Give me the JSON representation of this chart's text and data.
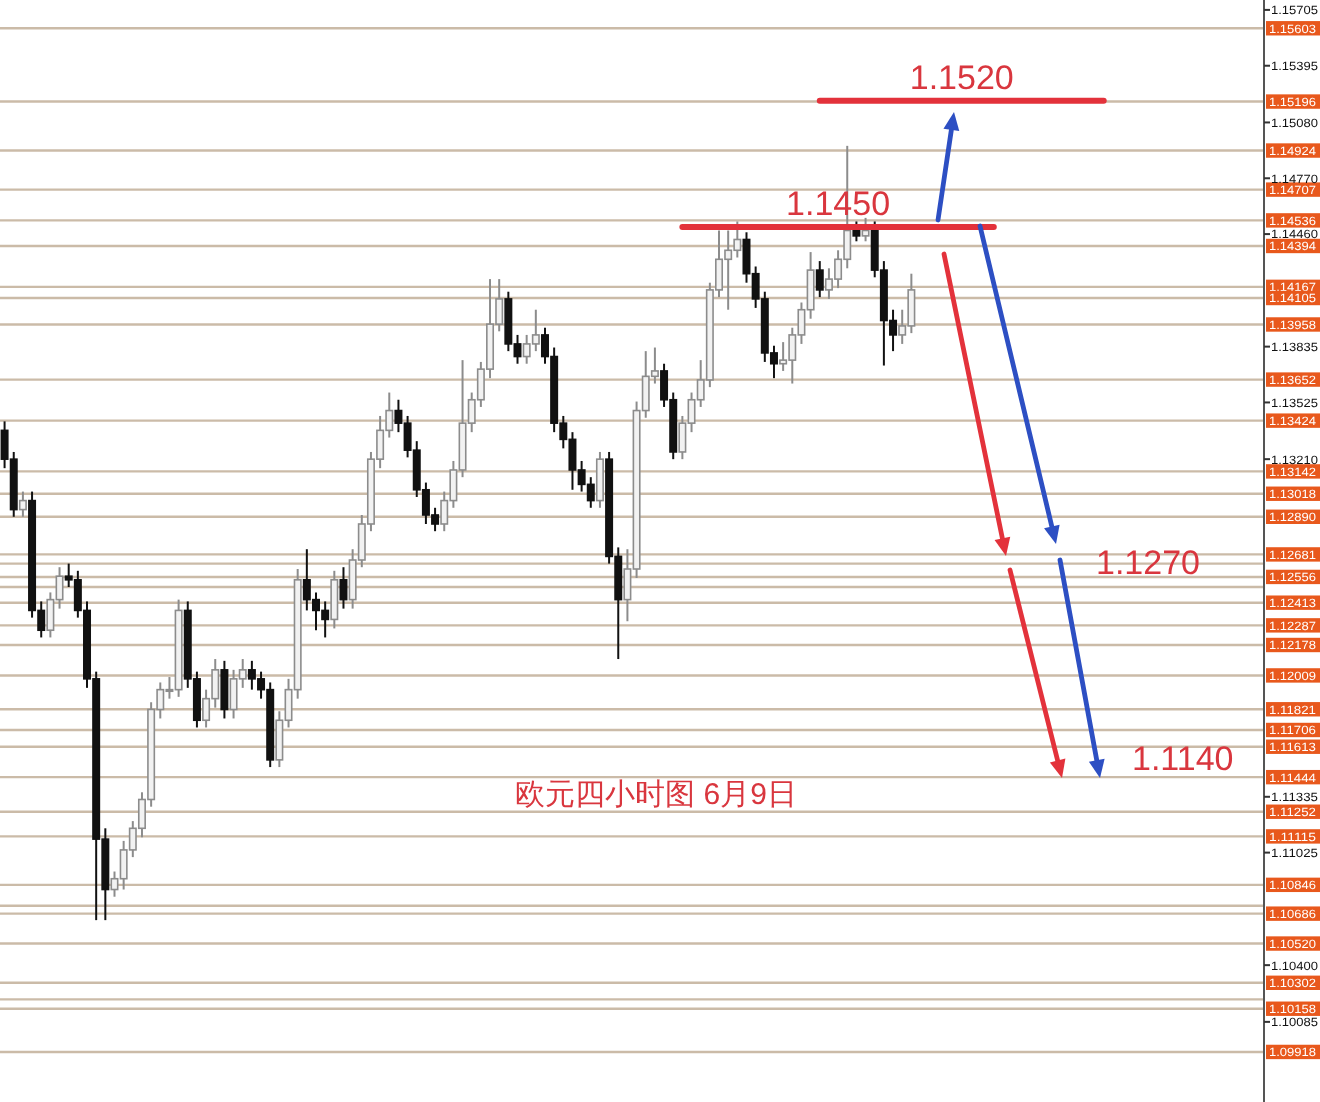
{
  "chart_data": {
    "type": "candlestick",
    "title": "欧元四小时图  6月9日",
    "categories": [
      null,
      null,
      null,
      null,
      null,
      null,
      null,
      null,
      null,
      null,
      null,
      null,
      null,
      null,
      null,
      null,
      null,
      null,
      null,
      null,
      null,
      null,
      null,
      null,
      null,
      null,
      null,
      null,
      null,
      null,
      null,
      null,
      null,
      null,
      null,
      null,
      null,
      null,
      null,
      null,
      null,
      null,
      null,
      null,
      null,
      null,
      null,
      null,
      null,
      null,
      null,
      null,
      null,
      null,
      null,
      null,
      null,
      null,
      null,
      null,
      null,
      null,
      null,
      null,
      null,
      null,
      null,
      null,
      null,
      null,
      null,
      null,
      null,
      null,
      null,
      null,
      null,
      null,
      null,
      null,
      null,
      null,
      null,
      null,
      null,
      null,
      null,
      null,
      null,
      null,
      null,
      null,
      null,
      null,
      null,
      null,
      null,
      null,
      null,
      null,
      null,
      null,
      null,
      null,
      null,
      null,
      null,
      null,
      null,
      null,
      null,
      null,
      null,
      null,
      null,
      null,
      null,
      null,
      null,
      null,
      null,
      null,
      null,
      null,
      null,
      null,
      null,
      null,
      null,
      null,
      null,
      null,
      null,
      null,
      null,
      null,
      null,
      null
    ],
    "ohlc": [
      [
        1.1337,
        1.1342,
        1.1316,
        1.1321
      ],
      [
        1.1321,
        1.1325,
        1.1289,
        1.1293
      ],
      [
        1.1293,
        1.1303,
        1.1289,
        1.1298
      ],
      [
        1.1298,
        1.1303,
        1.1233,
        1.1237
      ],
      [
        1.1237,
        1.1242,
        1.1222,
        1.1226
      ],
      [
        1.1226,
        1.1247,
        1.1222,
        1.1243
      ],
      [
        1.1243,
        1.1261,
        1.1238,
        1.1256
      ],
      [
        1.1256,
        1.1263,
        1.125,
        1.1254
      ],
      [
        1.1254,
        1.1259,
        1.1233,
        1.1237
      ],
      [
        1.1237,
        1.1242,
        1.1194,
        1.1199
      ],
      [
        1.1199,
        1.1203,
        1.1065,
        1.111
      ],
      [
        1.111,
        1.1116,
        1.1065,
        1.1082
      ],
      [
        1.1082,
        1.1092,
        1.1078,
        1.1088
      ],
      [
        1.1088,
        1.1109,
        1.1082,
        1.1104
      ],
      [
        1.1104,
        1.112,
        1.11,
        1.1116
      ],
      [
        1.1116,
        1.1136,
        1.1111,
        1.1132
      ],
      [
        1.1132,
        1.1186,
        1.1128,
        1.1182
      ],
      [
        1.1182,
        1.1197,
        1.1177,
        1.1193
      ],
      [
        1.1193,
        1.12,
        1.1188,
        1.1193
      ],
      [
        1.1193,
        1.1243,
        1.1189,
        1.1237
      ],
      [
        1.1237,
        1.1242,
        1.1194,
        1.1199
      ],
      [
        1.1199,
        1.1203,
        1.1172,
        1.1176
      ],
      [
        1.1176,
        1.1193,
        1.1172,
        1.1188
      ],
      [
        1.1188,
        1.121,
        1.1183,
        1.1204
      ],
      [
        1.1204,
        1.1209,
        1.1177,
        1.1182
      ],
      [
        1.1182,
        1.1204,
        1.1177,
        1.1199
      ],
      [
        1.1199,
        1.121,
        1.1194,
        1.1204
      ],
      [
        1.1204,
        1.1209,
        1.1193,
        1.1199
      ],
      [
        1.1199,
        1.1203,
        1.1188,
        1.1193
      ],
      [
        1.1193,
        1.1197,
        1.115,
        1.1154
      ],
      [
        1.1154,
        1.1181,
        1.115,
        1.1176
      ],
      [
        1.1176,
        1.1199,
        1.1172,
        1.1193
      ],
      [
        1.1193,
        1.126,
        1.1188,
        1.1254
      ],
      [
        1.1254,
        1.1271,
        1.1237,
        1.1243
      ],
      [
        1.1243,
        1.1247,
        1.1226,
        1.1237
      ],
      [
        1.1237,
        1.1242,
        1.1222,
        1.1232
      ],
      [
        1.1232,
        1.1259,
        1.1227,
        1.1254
      ],
      [
        1.1254,
        1.1261,
        1.1238,
        1.1243
      ],
      [
        1.1243,
        1.1271,
        1.1238,
        1.1265
      ],
      [
        1.1265,
        1.129,
        1.1261,
        1.1285
      ],
      [
        1.1285,
        1.1325,
        1.1281,
        1.1321
      ],
      [
        1.1321,
        1.1345,
        1.1316,
        1.1337
      ],
      [
        1.1337,
        1.1358,
        1.1333,
        1.1348
      ],
      [
        1.1348,
        1.1354,
        1.1336,
        1.1341
      ],
      [
        1.1341,
        1.1345,
        1.1322,
        1.1326
      ],
      [
        1.1326,
        1.1331,
        1.13,
        1.1304
      ],
      [
        1.1304,
        1.1308,
        1.1285,
        1.129
      ],
      [
        1.129,
        1.1294,
        1.1281,
        1.1285
      ],
      [
        1.1285,
        1.1303,
        1.1281,
        1.1298
      ],
      [
        1.1298,
        1.132,
        1.1294,
        1.1315
      ],
      [
        1.1315,
        1.1376,
        1.1311,
        1.1341
      ],
      [
        1.1341,
        1.1358,
        1.1336,
        1.1354
      ],
      [
        1.1354,
        1.1375,
        1.135,
        1.1371
      ],
      [
        1.1371,
        1.1421,
        1.1366,
        1.1396
      ],
      [
        1.1396,
        1.1421,
        1.1392,
        1.141
      ],
      [
        1.141,
        1.1414,
        1.1381,
        1.1385
      ],
      [
        1.1385,
        1.139,
        1.1374,
        1.1378
      ],
      [
        1.1378,
        1.139,
        1.1374,
        1.1385
      ],
      [
        1.1385,
        1.1404,
        1.1381,
        1.139
      ],
      [
        1.139,
        1.1394,
        1.1374,
        1.1378
      ],
      [
        1.1378,
        1.1383,
        1.1336,
        1.1341
      ],
      [
        1.1341,
        1.1345,
        1.1327,
        1.1332
      ],
      [
        1.1332,
        1.1336,
        1.1304,
        1.1315
      ],
      [
        1.1315,
        1.132,
        1.1303,
        1.1307
      ],
      [
        1.1307,
        1.1311,
        1.1294,
        1.1298
      ],
      [
        1.1298,
        1.1325,
        1.1294,
        1.1321
      ],
      [
        1.1321,
        1.1325,
        1.1263,
        1.1267
      ],
      [
        1.1267,
        1.1272,
        1.121,
        1.1243
      ],
      [
        1.1243,
        1.1271,
        1.1231,
        1.126
      ],
      [
        1.126,
        1.1353,
        1.1255,
        1.1348
      ],
      [
        1.1348,
        1.1381,
        1.1344,
        1.1367
      ],
      [
        1.1367,
        1.1383,
        1.1363,
        1.137
      ],
      [
        1.137,
        1.1374,
        1.135,
        1.1354
      ],
      [
        1.1354,
        1.1358,
        1.1321,
        1.1325
      ],
      [
        1.1325,
        1.1345,
        1.1321,
        1.1341
      ],
      [
        1.1341,
        1.1358,
        1.1336,
        1.1354
      ],
      [
        1.1354,
        1.1376,
        1.135,
        1.1365
      ],
      [
        1.1365,
        1.1419,
        1.1361,
        1.1415
      ],
      [
        1.1415,
        1.1448,
        1.1411,
        1.1432
      ],
      [
        1.1432,
        1.1448,
        1.1404,
        1.1437
      ],
      [
        1.1437,
        1.1453,
        1.1433,
        1.1443
      ],
      [
        1.1443,
        1.1447,
        1.1419,
        1.1424
      ],
      [
        1.1424,
        1.1428,
        1.1405,
        1.141
      ],
      [
        1.141,
        1.1414,
        1.1375,
        1.138
      ],
      [
        1.138,
        1.1384,
        1.1366,
        1.1374
      ],
      [
        1.1374,
        1.1386,
        1.137,
        1.1376
      ],
      [
        1.1376,
        1.1394,
        1.1363,
        1.139
      ],
      [
        1.139,
        1.1408,
        1.1385,
        1.1404
      ],
      [
        1.1404,
        1.1436,
        1.1399,
        1.1426
      ],
      [
        1.1426,
        1.1431,
        1.1411,
        1.1415
      ],
      [
        1.1415,
        1.1427,
        1.141,
        1.1421
      ],
      [
        1.1421,
        1.1437,
        1.1416,
        1.1432
      ],
      [
        1.1432,
        1.1495,
        1.1427,
        1.1448
      ],
      [
        1.1448,
        1.1453,
        1.1442,
        1.1445
      ],
      [
        1.1445,
        1.1455,
        1.1442,
        1.1448
      ],
      [
        1.1448,
        1.1453,
        1.1422,
        1.1426
      ],
      [
        1.1426,
        1.1431,
        1.1373,
        1.1398
      ],
      [
        1.1398,
        1.1404,
        1.1381,
        1.139
      ],
      [
        1.139,
        1.1404,
        1.1385,
        1.1395
      ],
      [
        1.1395,
        1.1424,
        1.1391,
        1.1415
      ],
      null,
      null,
      null,
      null,
      null,
      null,
      null,
      null,
      null,
      null,
      null,
      null,
      null,
      null,
      null,
      null,
      null,
      null,
      null,
      null,
      null,
      null,
      null,
      null,
      null,
      null,
      null,
      null,
      null,
      null,
      null,
      null,
      null,
      null,
      null,
      null,
      null,
      null
    ],
    "series": [
      {
        "type": "line",
        "name": "1.1520",
        "color": "#e3323b",
        "values": [
          null,
          null,
          null,
          null,
          null,
          null,
          null,
          null,
          null,
          null,
          null,
          null,
          null,
          null,
          null,
          null,
          null,
          null,
          null,
          null,
          null,
          null,
          null,
          null,
          null,
          null,
          null,
          null,
          null,
          null,
          null,
          null,
          null,
          null,
          null,
          null,
          null,
          null,
          null,
          null,
          null,
          null,
          null,
          null,
          null,
          null,
          null,
          null,
          null,
          null,
          null,
          null,
          null,
          null,
          null,
          null,
          null,
          null,
          null,
          null,
          null,
          null,
          null,
          null,
          null,
          null,
          null,
          null,
          null,
          null,
          null,
          null,
          null,
          null,
          null,
          null,
          null,
          null,
          null,
          null,
          null,
          null,
          null,
          null,
          null,
          null,
          null,
          null,
          null,
          1.152,
          1.152,
          1.152,
          1.152,
          1.152,
          1.152,
          1.152,
          1.152,
          1.152,
          1.152,
          1.152,
          1.152,
          1.152,
          1.152,
          1.152,
          1.152,
          1.152,
          1.152,
          1.152,
          1.152,
          1.152,
          1.152,
          1.152,
          1.152,
          1.152,
          1.152,
          1.152,
          1.152,
          1.152,
          1.152,
          1.152,
          1.152,
          null,
          null,
          null,
          null,
          null,
          null,
          null,
          null,
          null,
          null,
          null,
          null,
          null,
          null,
          null,
          null,
          null
        ]
      },
      {
        "type": "line",
        "name": "1.1450",
        "color": "#e3323b",
        "values": [
          null,
          null,
          null,
          null,
          null,
          null,
          null,
          null,
          null,
          null,
          null,
          null,
          null,
          null,
          null,
          null,
          null,
          null,
          null,
          null,
          null,
          null,
          null,
          null,
          null,
          null,
          null,
          null,
          null,
          null,
          null,
          null,
          null,
          null,
          null,
          null,
          null,
          null,
          null,
          null,
          null,
          null,
          null,
          null,
          null,
          null,
          null,
          null,
          null,
          null,
          null,
          null,
          null,
          null,
          null,
          null,
          null,
          null,
          null,
          null,
          null,
          null,
          null,
          null,
          null,
          null,
          null,
          null,
          null,
          null,
          null,
          null,
          null,
          null,
          1.145,
          1.145,
          1.145,
          1.145,
          1.145,
          1.145,
          1.145,
          1.145,
          1.145,
          1.145,
          1.145,
          1.145,
          1.145,
          1.145,
          1.145,
          1.145,
          1.145,
          1.145,
          1.145,
          1.145,
          1.145,
          1.145,
          1.145,
          1.145,
          1.145,
          1.145,
          1.145,
          1.145,
          1.145,
          1.145,
          1.145,
          1.145,
          1.145,
          1.145,
          1.145,
          null,
          null,
          null,
          null,
          null,
          null,
          null,
          null,
          null,
          null,
          null,
          null,
          null,
          null,
          null,
          null,
          null,
          null,
          null,
          null,
          null,
          null,
          null,
          null,
          null,
          null,
          null,
          null,
          null
        ]
      }
    ],
    "annotations": [
      "1.1270",
      "1.1140"
    ],
    "ylim": [
      1.0964,
      1.1576
    ],
    "yticks": [
      1.15705,
      1.15395,
      {
        "value": 1.1508,
        "label": "1.15080"
      },
      {
        "value": 1.1477,
        "label": "1.14770"
      },
      {
        "value": 1.1446,
        "label": "1.14460"
      },
      1.13835,
      1.13525,
      {
        "value": 1.1321,
        "label": "1.13210"
      },
      1.11335,
      1.11025,
      {
        "value": 1.104,
        "label": "1.10400"
      },
      1.10085
    ],
    "tick_labels": "y",
    "ref_lines": [
      {
        "axis": "y",
        "value": 1.15603,
        "label": "1.15603"
      },
      {
        "axis": "y",
        "value": 1.15196,
        "label": "1.15196"
      },
      {
        "axis": "y",
        "value": 1.14924,
        "label": "1.14924"
      },
      {
        "axis": "y",
        "value": 1.14707,
        "label": "1.14707"
      },
      {
        "axis": "y",
        "value": 1.14536,
        "label": "1.14536"
      },
      {
        "axis": "y",
        "value": 1.14394,
        "label": "1.14394"
      },
      {
        "axis": "y",
        "value": 1.14167,
        "label": "1.14167"
      },
      {
        "axis": "y",
        "value": 1.14105,
        "label": "1.14105"
      },
      {
        "axis": "y",
        "value": 1.13958,
        "label": "1.13958"
      },
      {
        "axis": "y",
        "value": 1.13652,
        "label": "1.13652"
      },
      {
        "axis": "y",
        "value": 1.13424,
        "label": "1.13424"
      },
      {
        "axis": "y",
        "value": 1.13142,
        "label": "1.13142"
      },
      {
        "axis": "y",
        "value": 1.13018,
        "label": "1.13018"
      },
      {
        "axis": "y",
        "value": 1.1289,
        "label": "1.12890"
      },
      {
        "axis": "y",
        "value": 1.12681,
        "label": "1.12681"
      },
      {
        "axis": "y",
        "value": 1.1263,
        "label": null
      },
      {
        "axis": "y",
        "value": 1.12556,
        "label": "1.12556"
      },
      {
        "axis": "y",
        "value": 1.125,
        "label": null
      },
      {
        "axis": "y",
        "value": 1.12413,
        "label": "1.12413"
      },
      {
        "axis": "y",
        "value": 1.12287,
        "label": "1.12287"
      },
      {
        "axis": "y",
        "value": 1.12178,
        "label": "1.12178"
      },
      {
        "axis": "y",
        "value": 1.12009,
        "label": "1.12009"
      },
      {
        "axis": "y",
        "value": 1.11821,
        "label": "1.11821"
      },
      {
        "axis": "y",
        "value": 1.11706,
        "label": "1.11706"
      },
      {
        "axis": "y",
        "value": 1.11613,
        "label": "1.11613"
      },
      {
        "axis": "y",
        "value": 1.11444,
        "label": "1.11444"
      },
      {
        "axis": "y",
        "value": 1.11252,
        "label": "1.11252"
      },
      {
        "axis": "y",
        "value": 1.11115,
        "label": "1.11115"
      },
      {
        "axis": "y",
        "value": 1.10846,
        "label": "1.10846"
      },
      {
        "axis": "y",
        "value": 1.1073,
        "label": null
      },
      {
        "axis": "y",
        "value": 1.10686,
        "label": "1.10686"
      },
      {
        "axis": "y",
        "value": 1.1052,
        "label": "1.10520"
      },
      {
        "axis": "y",
        "value": 1.10302,
        "label": "1.10302"
      },
      {
        "axis": "y",
        "value": 1.1021,
        "label": null
      },
      {
        "axis": "y",
        "value": 1.10158,
        "label": "1.10158"
      },
      {
        "axis": "y",
        "value": 1.09918,
        "label": "1.09918"
      }
    ]
  }
}
